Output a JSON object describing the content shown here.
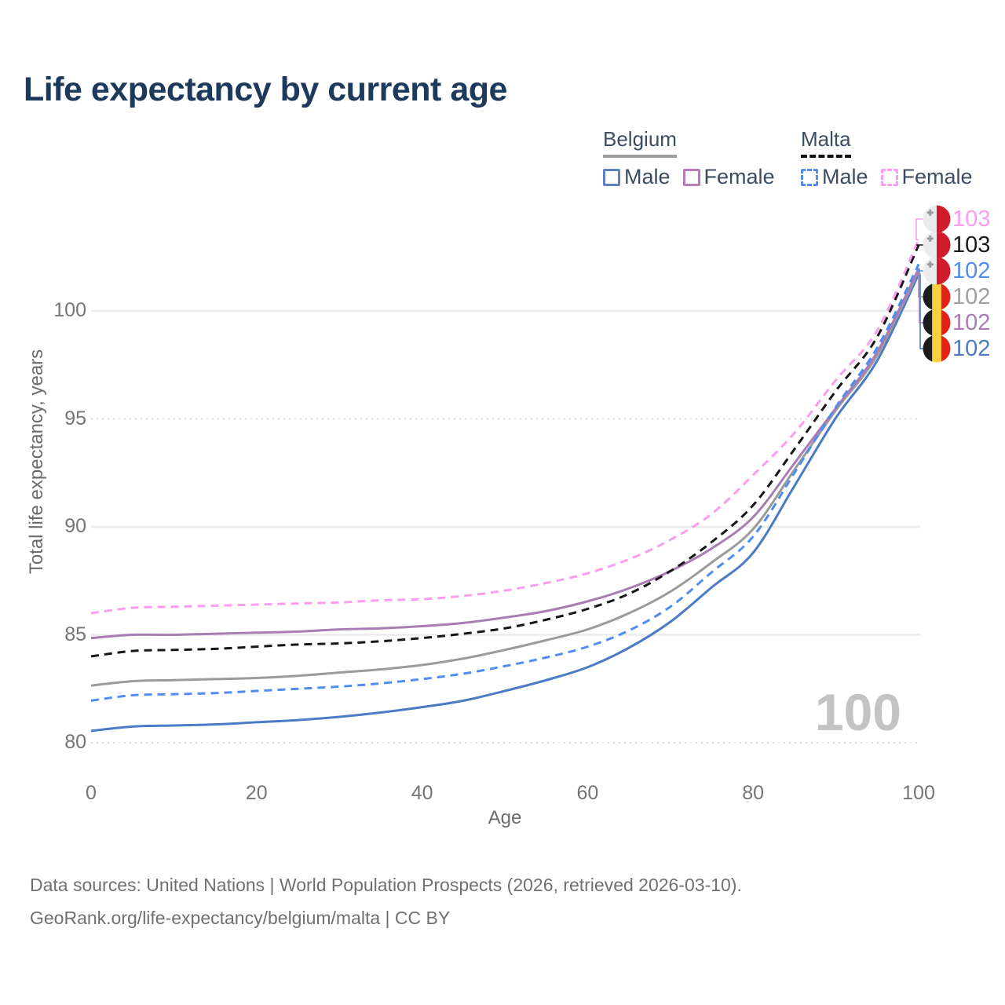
{
  "title": "Life expectancy by current age",
  "legend": {
    "groups": [
      {
        "country": "Belgium",
        "line_style": "solid",
        "underline_color": "#9e9e9e",
        "items": [
          {
            "label": "Male",
            "color": "#5d83c4",
            "dash": false
          },
          {
            "label": "Female",
            "color": "#b87ab8",
            "dash": false
          }
        ]
      },
      {
        "country": "Malta",
        "line_style": "dashed",
        "underline_color": "#141414",
        "items": [
          {
            "label": "Male",
            "color": "#4f8df2",
            "dash": true
          },
          {
            "label": "Female",
            "color": "#fb9cf1",
            "dash": true
          }
        ]
      }
    ]
  },
  "footer": {
    "line1": "Data sources: United Nations | World Population Prospects (2026, retrieved 2026-03-10).",
    "line2": "GeoRank.org/life-expectancy/belgium/malta | CC BY"
  },
  "colors": {
    "title": "#1d3a5c",
    "axis_text": "#757575",
    "legend_text": "#3c4c63",
    "footer_text": "#707070",
    "watermark": "#c3c3c3",
    "grid_solid": "#ececec",
    "grid_dotted": "#d9d9d9",
    "belgium_male": "#4a7bc4",
    "belgium_female": "#a97cb4",
    "belgium_total": "#9b9b9b",
    "malta_male": "#4f8df2",
    "malta_female": "#fb9cf1",
    "malta_total": "#161616",
    "flag_malta_white": "#ebebeb",
    "flag_malta_red": "#cf1b2b",
    "flag_malta_cross": "#9a9a9a",
    "flag_belgium_black": "#1c1c1c",
    "flag_belgium_yellow": "#f9d03f",
    "flag_belgium_red": "#e32119"
  },
  "chart_data": {
    "type": "line",
    "title": "Life expectancy by current age",
    "xlabel": "Age",
    "ylabel": "Total life expectancy, years",
    "x_ticks": [
      0,
      20,
      40,
      60,
      80,
      100
    ],
    "y_ticks": [
      80,
      85,
      90,
      95,
      100
    ],
    "dotted_gridlines": [
      80,
      95
    ],
    "xlim": [
      0,
      100
    ],
    "ylim": [
      79.5,
      104
    ],
    "grid": "horizontal",
    "legend_position": "top-right",
    "age_counter": "100",
    "x": [
      0,
      5,
      10,
      15,
      20,
      25,
      30,
      35,
      40,
      45,
      50,
      55,
      60,
      65,
      70,
      75,
      80,
      85,
      90,
      95,
      100
    ],
    "series": [
      {
        "name": "Belgium Male",
        "country": "Belgium",
        "sex": "male",
        "color": "#4a7bc4",
        "dash": false,
        "flag": "belgium",
        "end_label": "102",
        "label_row": 6,
        "label_color": "#4a7bc4",
        "values": [
          80.55,
          80.75,
          80.8,
          80.85,
          80.95,
          81.05,
          81.2,
          81.4,
          81.65,
          81.95,
          82.4,
          82.9,
          83.5,
          84.4,
          85.6,
          87.2,
          88.8,
          91.9,
          95.05,
          97.7,
          101.7
        ]
      },
      {
        "name": "Belgium",
        "country": "Belgium",
        "sex": "total",
        "color": "#9b9b9b",
        "dash": false,
        "flag": "belgium",
        "end_label": "102",
        "label_row": 4,
        "label_color": "#9f9f9f",
        "values": [
          82.65,
          82.85,
          82.9,
          82.95,
          83.0,
          83.1,
          83.25,
          83.4,
          83.6,
          83.9,
          84.3,
          84.75,
          85.25,
          86.0,
          87.0,
          88.35,
          89.9,
          92.65,
          95.4,
          97.95,
          101.85
        ]
      },
      {
        "name": "Belgium Female",
        "country": "Belgium",
        "sex": "female",
        "color": "#a97cb4",
        "dash": false,
        "flag": "belgium",
        "end_label": "102",
        "label_row": 5,
        "label_color": "#a97cb4",
        "values": [
          84.85,
          85.0,
          85.0,
          85.05,
          85.1,
          85.15,
          85.25,
          85.3,
          85.4,
          85.55,
          85.8,
          86.1,
          86.55,
          87.15,
          87.95,
          89.0,
          90.45,
          92.95,
          95.5,
          98.1,
          101.95
        ]
      },
      {
        "name": "Malta Male",
        "country": "Malta",
        "sex": "male",
        "color": "#4f8df2",
        "dash": true,
        "flag": "malta",
        "end_label": "102",
        "label_row": 3,
        "label_color": "#4f8df2",
        "values": [
          81.95,
          82.2,
          82.25,
          82.3,
          82.4,
          82.5,
          82.6,
          82.75,
          82.95,
          83.2,
          83.55,
          83.95,
          84.45,
          85.2,
          86.3,
          87.9,
          89.55,
          92.5,
          95.55,
          98.3,
          102.15
        ]
      },
      {
        "name": "Malta",
        "country": "Malta",
        "sex": "total",
        "color": "#161616",
        "dash": true,
        "flag": "malta",
        "end_label": "103",
        "label_row": 2,
        "label_color": "#1b1b1b",
        "values": [
          84.0,
          84.25,
          84.3,
          84.35,
          84.45,
          84.55,
          84.6,
          84.7,
          84.85,
          85.05,
          85.3,
          85.7,
          86.2,
          86.9,
          87.95,
          89.3,
          91.0,
          93.6,
          96.3,
          98.8,
          103.05
        ]
      },
      {
        "name": "Malta Female",
        "country": "Malta",
        "sex": "female",
        "color": "#fb9cf1",
        "dash": true,
        "flag": "malta",
        "end_label": "103",
        "label_row": 1,
        "label_color": "#fb9cf1",
        "values": [
          86.0,
          86.25,
          86.3,
          86.35,
          86.4,
          86.45,
          86.5,
          86.6,
          86.65,
          86.8,
          87.05,
          87.4,
          87.85,
          88.5,
          89.4,
          90.6,
          92.4,
          94.35,
          96.8,
          99.1,
          103.3
        ]
      }
    ]
  }
}
